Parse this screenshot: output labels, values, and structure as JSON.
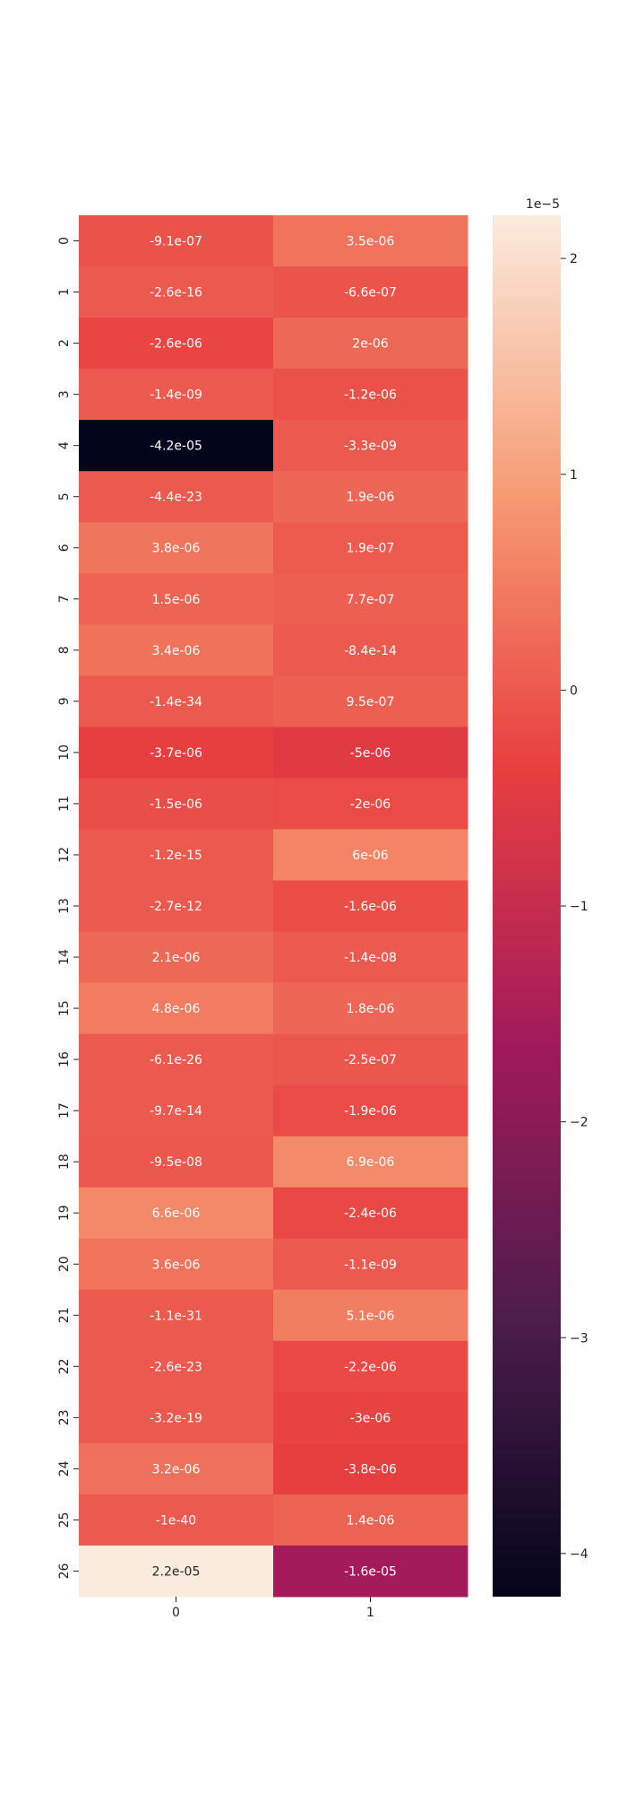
{
  "chart_data": {
    "type": "heatmap",
    "title": "",
    "xlabel": "",
    "ylabel": "",
    "x_tick_labels": [
      "0",
      "1"
    ],
    "y_tick_labels": [
      "0",
      "1",
      "2",
      "3",
      "4",
      "5",
      "6",
      "7",
      "8",
      "9",
      "10",
      "11",
      "12",
      "13",
      "14",
      "15",
      "16",
      "17",
      "18",
      "19",
      "20",
      "21",
      "22",
      "23",
      "24",
      "25",
      "26"
    ],
    "cell_labels": [
      [
        "-9.1e-07",
        "3.5e-06"
      ],
      [
        "-2.6e-16",
        "-6.6e-07"
      ],
      [
        "-2.6e-06",
        "2e-06"
      ],
      [
        "-1.4e-09",
        "-1.2e-06"
      ],
      [
        "-4.2e-05",
        "-3.3e-09"
      ],
      [
        "-4.4e-23",
        "1.9e-06"
      ],
      [
        "3.8e-06",
        "1.9e-07"
      ],
      [
        "1.5e-06",
        "7.7e-07"
      ],
      [
        "3.4e-06",
        "-8.4e-14"
      ],
      [
        "-1.4e-34",
        "9.5e-07"
      ],
      [
        "-3.7e-06",
        "-5e-06"
      ],
      [
        "-1.5e-06",
        "-2e-06"
      ],
      [
        "-1.2e-15",
        "6e-06"
      ],
      [
        "-2.7e-12",
        "-1.6e-06"
      ],
      [
        "2.1e-06",
        "-1.4e-08"
      ],
      [
        "4.8e-06",
        "1.8e-06"
      ],
      [
        "-6.1e-26",
        "-2.5e-07"
      ],
      [
        "-9.7e-14",
        "-1.9e-06"
      ],
      [
        "-9.5e-08",
        "6.9e-06"
      ],
      [
        "6.6e-06",
        "-2.4e-06"
      ],
      [
        "3.6e-06",
        "-1.1e-09"
      ],
      [
        "-1.1e-31",
        "5.1e-06"
      ],
      [
        "-2.6e-23",
        "-2.2e-06"
      ],
      [
        "-3.2e-19",
        "-3e-06"
      ],
      [
        "3.2e-06",
        "-3.8e-06"
      ],
      [
        "-1e-40",
        "1.4e-06"
      ],
      [
        "2.2e-05",
        "-1.6e-05"
      ]
    ],
    "values": [
      [
        -9.1e-07,
        3.5e-06
      ],
      [
        -2.6e-16,
        -6.6e-07
      ],
      [
        -2.6e-06,
        2e-06
      ],
      [
        -1.4e-09,
        -1.2e-06
      ],
      [
        -4.2e-05,
        -3.3e-09
      ],
      [
        -4.4e-23,
        1.9e-06
      ],
      [
        3.8e-06,
        1.9e-07
      ],
      [
        1.5e-06,
        7.7e-07
      ],
      [
        3.4e-06,
        -8.4e-14
      ],
      [
        -1.4e-34,
        9.5e-07
      ],
      [
        -3.7e-06,
        -5e-06
      ],
      [
        -1.5e-06,
        -2e-06
      ],
      [
        -1.2e-15,
        6e-06
      ],
      [
        -2.7e-12,
        -1.6e-06
      ],
      [
        2.1e-06,
        -1.4e-08
      ],
      [
        4.8e-06,
        1.8e-06
      ],
      [
        -6.1e-26,
        -2.5e-07
      ],
      [
        -9.7e-14,
        -1.9e-06
      ],
      [
        -9.5e-08,
        6.9e-06
      ],
      [
        6.6e-06,
        -2.4e-06
      ],
      [
        3.6e-06,
        -1.1e-09
      ],
      [
        -1.1e-31,
        5.1e-06
      ],
      [
        -2.6e-23,
        -2.2e-06
      ],
      [
        -3.2e-19,
        -3e-06
      ],
      [
        3.2e-06,
        -3.8e-06
      ],
      [
        -1e-40,
        1.4e-06
      ],
      [
        2.2e-05,
        -1.6e-05
      ]
    ],
    "colorbar": {
      "vmin": -4.2e-05,
      "vmax": 2.2e-05,
      "ticks": [
        2,
        1,
        0,
        -1,
        -2,
        -3,
        -4
      ],
      "tick_labels": [
        "2",
        "1",
        "0",
        "−1",
        "−2",
        "−3",
        "−4"
      ],
      "multiplier_label": "1e−5",
      "multiplier": 1e-05
    },
    "colormap": "rocket",
    "colormap_stops": [
      "#03051a",
      "#4c1d4b",
      "#a11a5b",
      "#e83f3f",
      "#f69c73",
      "#faebdd"
    ],
    "grid": false,
    "legend": "none"
  }
}
